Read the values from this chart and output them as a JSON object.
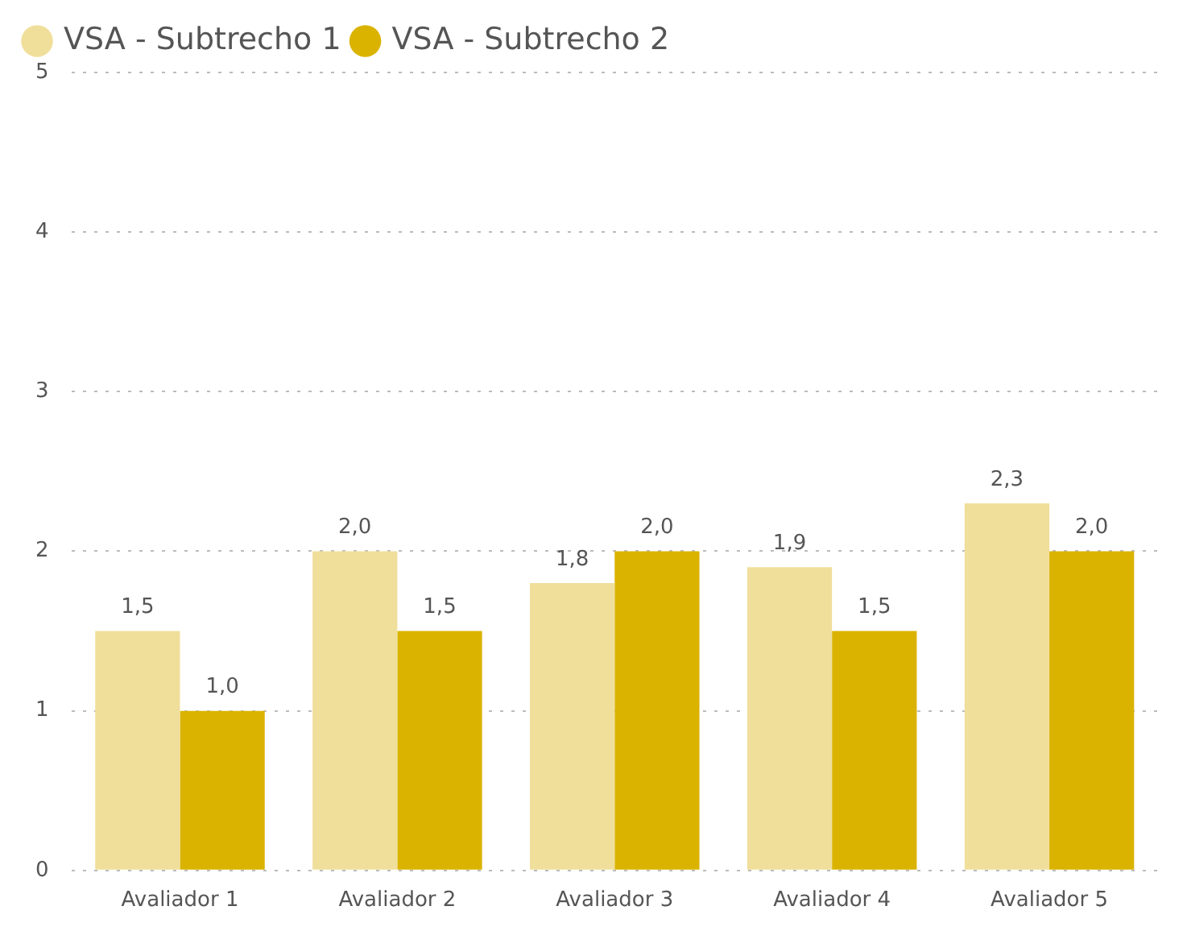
{
  "chart_data": {
    "type": "bar",
    "categories": [
      "Avaliador 1",
      "Avaliador 2",
      "Avaliador 3",
      "Avaliador 4",
      "Avaliador 5"
    ],
    "series": [
      {
        "name": "VSA - Subtrecho 1",
        "color": "#f0df9b",
        "values": [
          1.5,
          2.0,
          1.8,
          1.9,
          2.3
        ],
        "value_labels": [
          "1,5",
          "2,0",
          "1,8",
          "1,9",
          "2,3"
        ]
      },
      {
        "name": "VSA - Subtrecho 2",
        "color": "#dab300",
        "values": [
          1.0,
          1.5,
          2.0,
          1.5,
          2.0
        ],
        "value_labels": [
          "1,0",
          "1,5",
          "2,0",
          "1,5",
          "2,0"
        ]
      }
    ],
    "ylim": [
      0,
      5
    ],
    "yticks": [
      0,
      1,
      2,
      3,
      4,
      5
    ],
    "grid": "y",
    "legend": "top left"
  }
}
